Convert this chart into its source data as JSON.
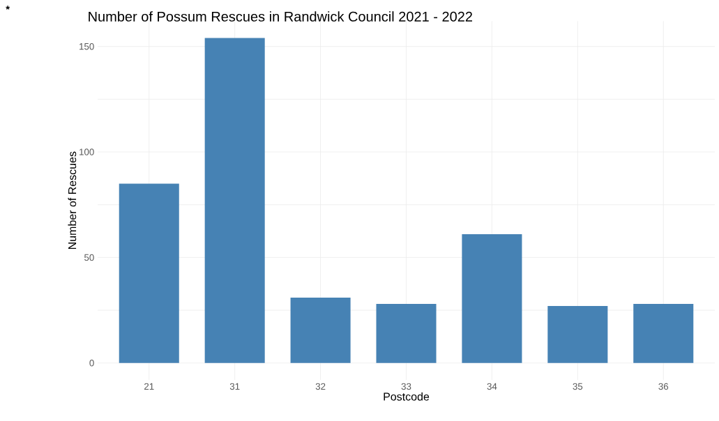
{
  "chart_data": {
    "type": "bar",
    "title": "Number of Possum Rescues in Randwick Council 2021 - 2022",
    "xlabel": "Postcode",
    "ylabel": "Number of Rescues",
    "categories": [
      "21",
      "31",
      "32",
      "33",
      "34",
      "35",
      "36"
    ],
    "values": [
      85,
      154,
      31,
      28,
      61,
      27,
      28
    ],
    "color": "#4682b4",
    "ylim": [
      -8,
      162
    ],
    "yticks": [
      0,
      {
        "value": 25,
        "label": null
      },
      50,
      {
        "value": 75,
        "label": null
      },
      100,
      {
        "value": 125,
        "label": null
      },
      150
    ],
    "grid": true,
    "annotations": [
      "*"
    ]
  }
}
